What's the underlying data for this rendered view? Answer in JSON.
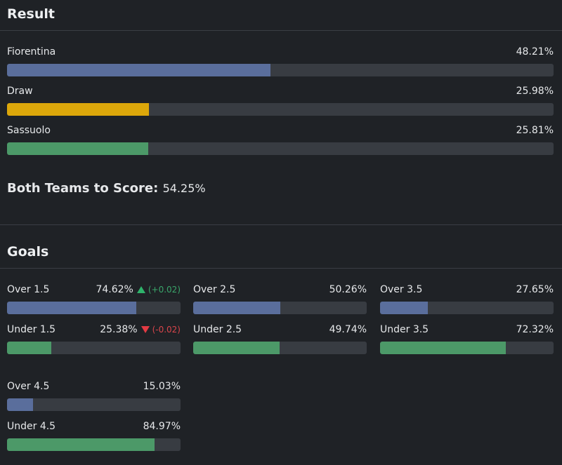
{
  "result": {
    "title": "Result",
    "outcomes": [
      {
        "label": "Fiorentina",
        "percent_text": "48.21%",
        "value": 48.21,
        "color": "#5a6e9c"
      },
      {
        "label": "Draw",
        "percent_text": "25.98%",
        "value": 25.98,
        "color": "#dca70a"
      },
      {
        "label": "Sassuolo",
        "percent_text": "25.81%",
        "value": 25.81,
        "color": "#4c9968"
      }
    ],
    "btts_label": "Both Teams to Score:",
    "btts_value": "54.25%"
  },
  "goals": {
    "title": "Goals",
    "markets": [
      {
        "over_label": "Over 1.5",
        "over_text": "74.62%",
        "over_value": 74.62,
        "over_change": "(+0.02)",
        "under_label": "Under 1.5",
        "under_text": "25.38%",
        "under_value": 25.38,
        "under_change": "(-0.02)"
      },
      {
        "over_label": "Over 2.5",
        "over_text": "50.26%",
        "over_value": 50.26,
        "under_label": "Under 2.5",
        "under_text": "49.74%",
        "under_value": 49.74
      },
      {
        "over_label": "Over 3.5",
        "over_text": "27.65%",
        "over_value": 27.65,
        "under_label": "Under 3.5",
        "under_text": "72.32%",
        "under_value": 72.32
      },
      {
        "over_label": "Over 4.5",
        "over_text": "15.03%",
        "over_value": 15.03,
        "under_label": "Under 4.5",
        "under_text": "84.97%",
        "under_value": 84.97
      }
    ]
  },
  "colors": {
    "over": "#5a6e9c",
    "under": "#4c9968",
    "up": "#2fb36b",
    "down": "#e33a43"
  }
}
